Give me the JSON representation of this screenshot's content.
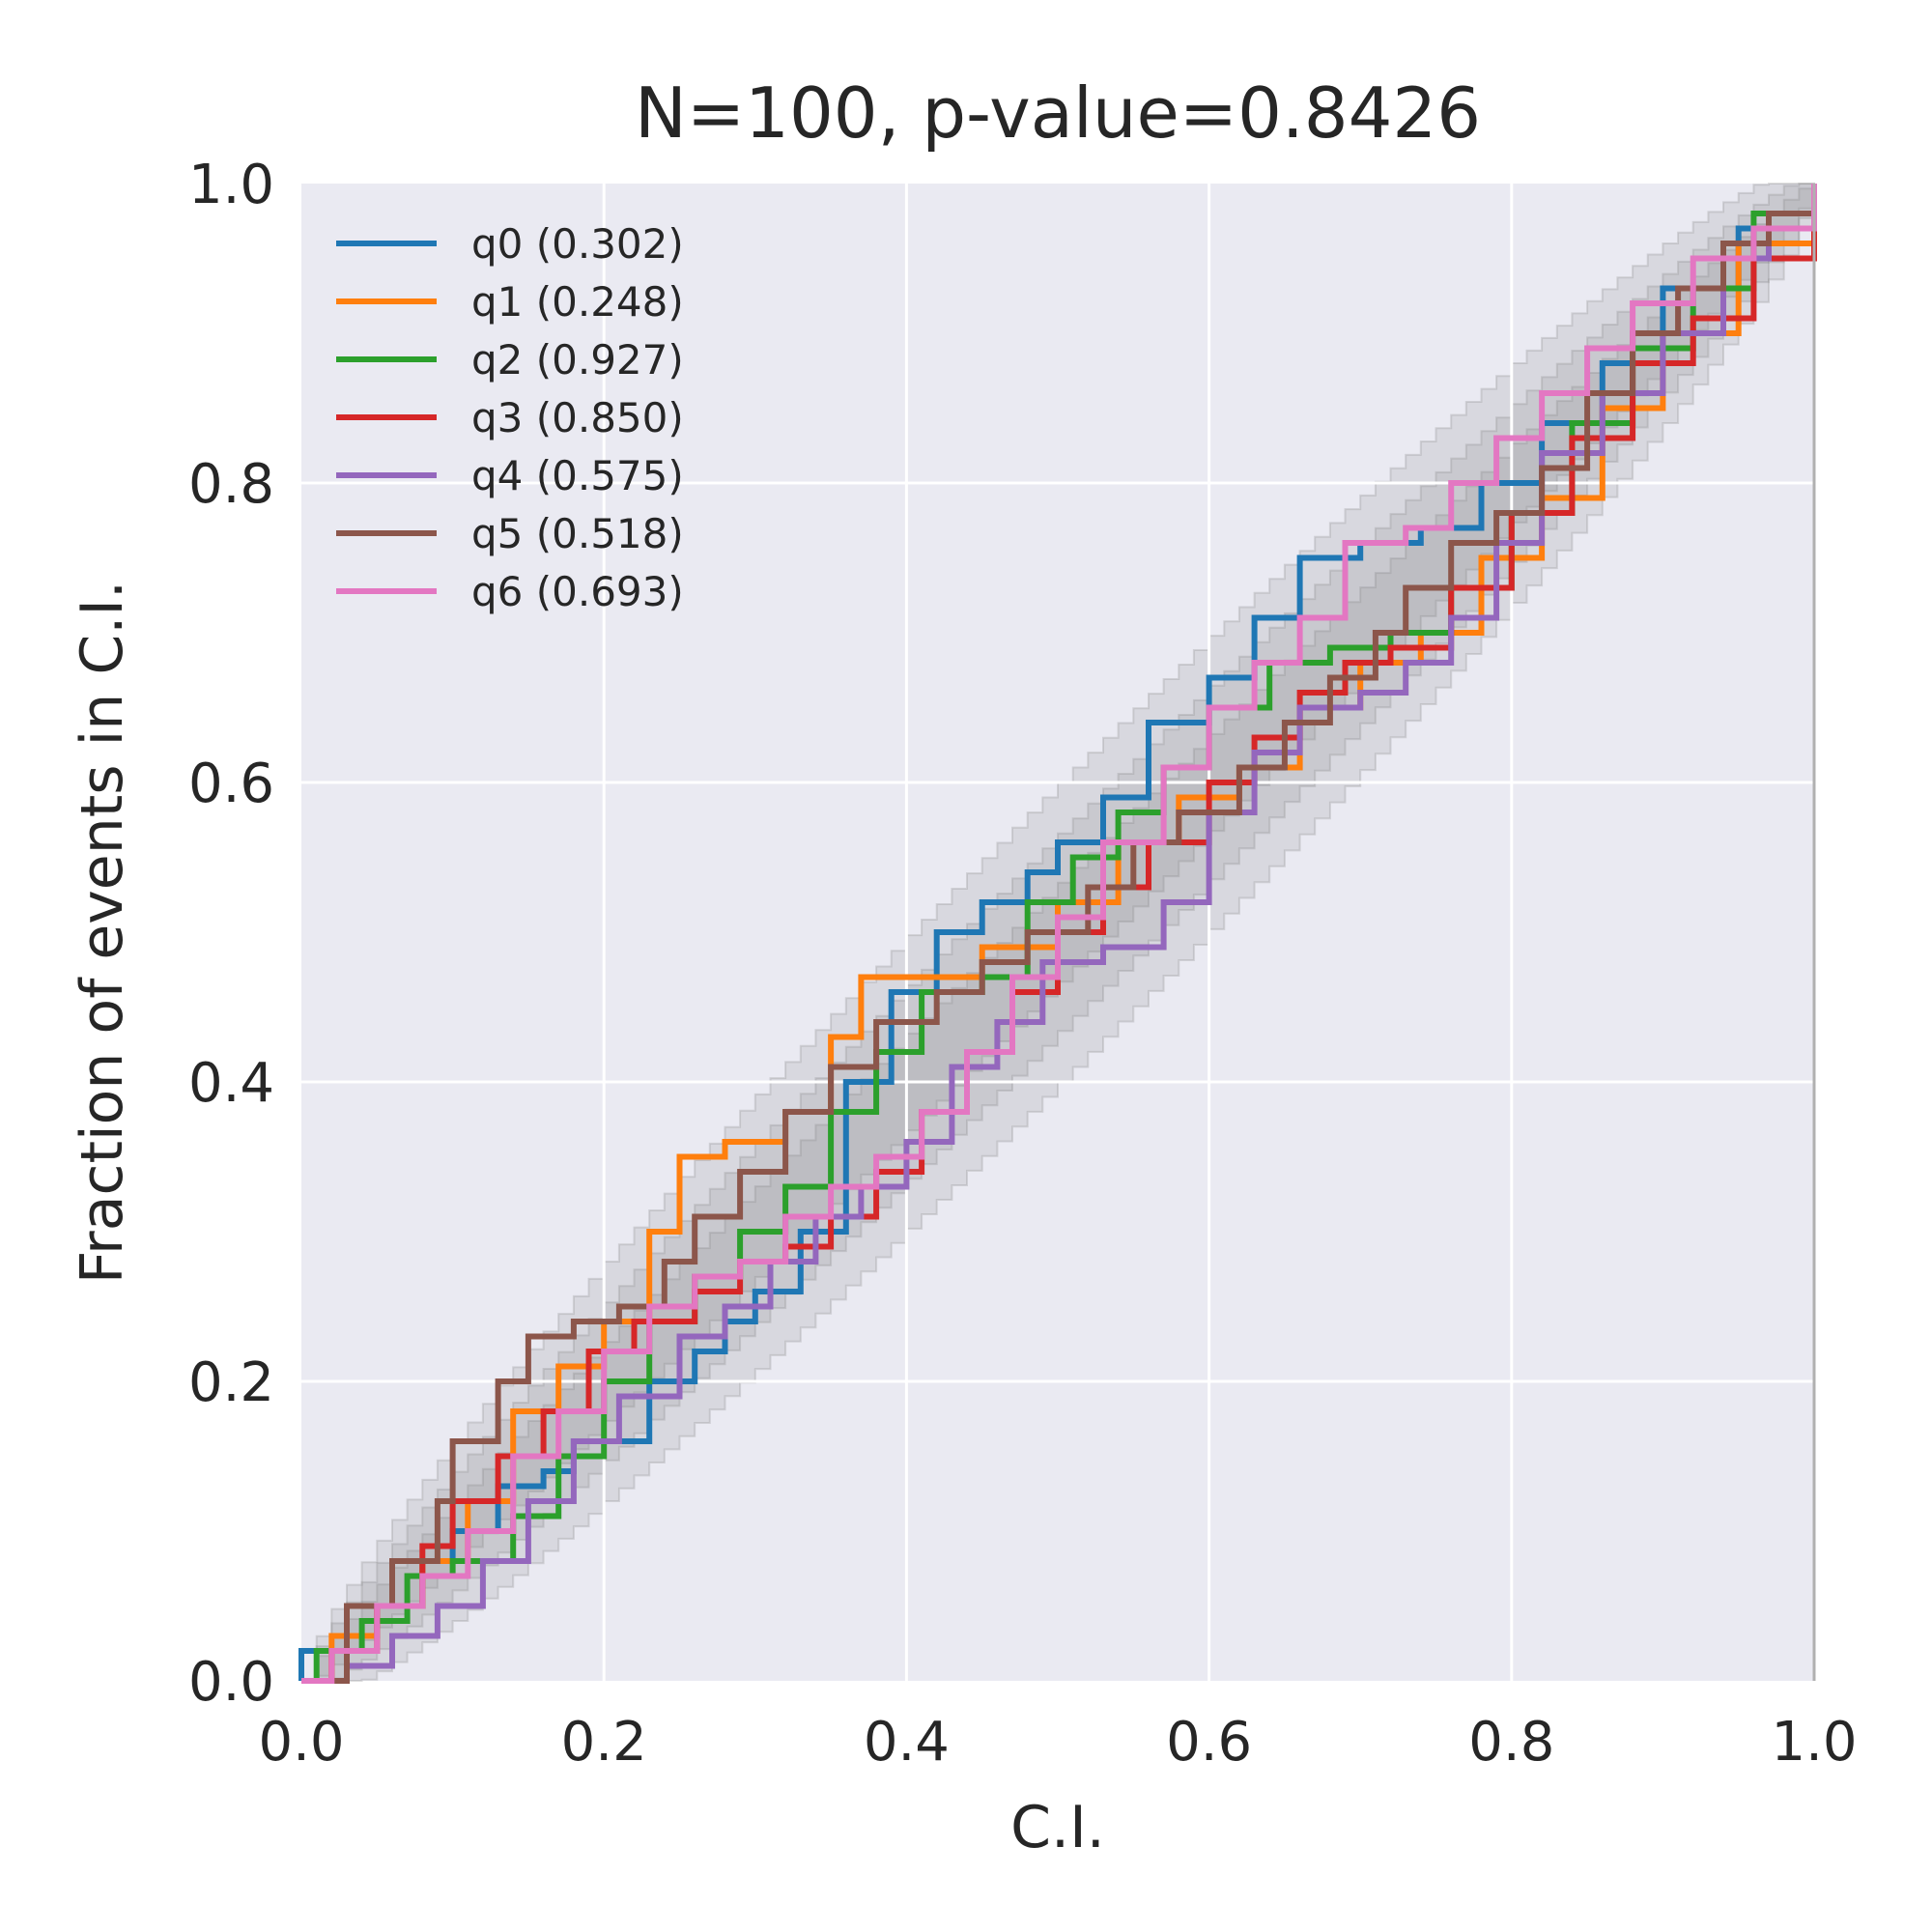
{
  "chart_data": {
    "type": "line",
    "title": "N=100, p-value=0.8426",
    "xlabel": "C.I.",
    "ylabel": "Fraction of events in C.I.",
    "xlim": [
      0.0,
      1.0
    ],
    "ylim": [
      0.0,
      1.0
    ],
    "x_ticks": [
      "0.0",
      "0.2",
      "0.4",
      "0.6",
      "0.8",
      "1.0"
    ],
    "y_ticks": [
      "0.0",
      "0.2",
      "0.4",
      "0.6",
      "0.8",
      "1.0"
    ],
    "grid": true,
    "legend_position": "upper-left",
    "confidence_bands": {
      "fill_color": "#808080",
      "half_widths": [
        0.1,
        0.066,
        0.033
      ]
    },
    "series": [
      {
        "name": "q0 (0.302)",
        "color": "#1f77b4",
        "points": [
          [
            0.0,
            0.0
          ],
          [
            0.0,
            0.02
          ],
          [
            0.03,
            0.03
          ],
          [
            0.05,
            0.05
          ],
          [
            0.08,
            0.08
          ],
          [
            0.1,
            0.1
          ],
          [
            0.13,
            0.13
          ],
          [
            0.16,
            0.14
          ],
          [
            0.18,
            0.16
          ],
          [
            0.22,
            0.16
          ],
          [
            0.23,
            0.2
          ],
          [
            0.26,
            0.22
          ],
          [
            0.28,
            0.24
          ],
          [
            0.3,
            0.26
          ],
          [
            0.33,
            0.3
          ],
          [
            0.36,
            0.4
          ],
          [
            0.39,
            0.46
          ],
          [
            0.42,
            0.5
          ],
          [
            0.45,
            0.52
          ],
          [
            0.48,
            0.54
          ],
          [
            0.5,
            0.56
          ],
          [
            0.53,
            0.59
          ],
          [
            0.56,
            0.64
          ],
          [
            0.6,
            0.67
          ],
          [
            0.63,
            0.71
          ],
          [
            0.66,
            0.75
          ],
          [
            0.7,
            0.76
          ],
          [
            0.74,
            0.77
          ],
          [
            0.78,
            0.8
          ],
          [
            0.82,
            0.84
          ],
          [
            0.86,
            0.88
          ],
          [
            0.9,
            0.93
          ],
          [
            0.95,
            0.97
          ],
          [
            1.0,
            1.0
          ]
        ]
      },
      {
        "name": "q1 (0.248)",
        "color": "#ff7f0e",
        "points": [
          [
            0.0,
            0.0
          ],
          [
            0.02,
            0.03
          ],
          [
            0.05,
            0.05
          ],
          [
            0.08,
            0.08
          ],
          [
            0.11,
            0.12
          ],
          [
            0.14,
            0.18
          ],
          [
            0.17,
            0.21
          ],
          [
            0.2,
            0.24
          ],
          [
            0.23,
            0.3
          ],
          [
            0.25,
            0.35
          ],
          [
            0.28,
            0.36
          ],
          [
            0.32,
            0.38
          ],
          [
            0.35,
            0.43
          ],
          [
            0.37,
            0.47
          ],
          [
            0.41,
            0.47
          ],
          [
            0.45,
            0.49
          ],
          [
            0.5,
            0.52
          ],
          [
            0.54,
            0.56
          ],
          [
            0.58,
            0.59
          ],
          [
            0.62,
            0.61
          ],
          [
            0.66,
            0.65
          ],
          [
            0.7,
            0.68
          ],
          [
            0.74,
            0.7
          ],
          [
            0.78,
            0.75
          ],
          [
            0.82,
            0.79
          ],
          [
            0.86,
            0.85
          ],
          [
            0.9,
            0.9
          ],
          [
            0.95,
            0.96
          ],
          [
            1.0,
            1.0
          ]
        ]
      },
      {
        "name": "q2 (0.927)",
        "color": "#2ca02c",
        "points": [
          [
            0.0,
            0.0
          ],
          [
            0.01,
            0.02
          ],
          [
            0.04,
            0.04
          ],
          [
            0.07,
            0.07
          ],
          [
            0.1,
            0.08
          ],
          [
            0.14,
            0.11
          ],
          [
            0.17,
            0.15
          ],
          [
            0.2,
            0.2
          ],
          [
            0.23,
            0.24
          ],
          [
            0.26,
            0.27
          ],
          [
            0.29,
            0.3
          ],
          [
            0.32,
            0.33
          ],
          [
            0.35,
            0.38
          ],
          [
            0.38,
            0.42
          ],
          [
            0.41,
            0.46
          ],
          [
            0.45,
            0.47
          ],
          [
            0.48,
            0.52
          ],
          [
            0.51,
            0.55
          ],
          [
            0.54,
            0.58
          ],
          [
            0.57,
            0.61
          ],
          [
            0.6,
            0.65
          ],
          [
            0.64,
            0.68
          ],
          [
            0.68,
            0.69
          ],
          [
            0.72,
            0.7
          ],
          [
            0.76,
            0.73
          ],
          [
            0.8,
            0.78
          ],
          [
            0.84,
            0.84
          ],
          [
            0.88,
            0.89
          ],
          [
            0.92,
            0.93
          ],
          [
            0.96,
            0.98
          ],
          [
            1.0,
            1.0
          ]
        ]
      },
      {
        "name": "q3 (0.850)",
        "color": "#d62728",
        "points": [
          [
            0.0,
            0.0
          ],
          [
            0.02,
            0.02
          ],
          [
            0.05,
            0.05
          ],
          [
            0.08,
            0.09
          ],
          [
            0.1,
            0.12
          ],
          [
            0.13,
            0.15
          ],
          [
            0.16,
            0.18
          ],
          [
            0.19,
            0.22
          ],
          [
            0.22,
            0.24
          ],
          [
            0.26,
            0.26
          ],
          [
            0.29,
            0.28
          ],
          [
            0.32,
            0.29
          ],
          [
            0.35,
            0.31
          ],
          [
            0.38,
            0.34
          ],
          [
            0.41,
            0.38
          ],
          [
            0.44,
            0.42
          ],
          [
            0.47,
            0.46
          ],
          [
            0.5,
            0.5
          ],
          [
            0.53,
            0.53
          ],
          [
            0.56,
            0.56
          ],
          [
            0.6,
            0.6
          ],
          [
            0.63,
            0.63
          ],
          [
            0.66,
            0.66
          ],
          [
            0.69,
            0.68
          ],
          [
            0.72,
            0.69
          ],
          [
            0.76,
            0.73
          ],
          [
            0.8,
            0.78
          ],
          [
            0.84,
            0.83
          ],
          [
            0.88,
            0.88
          ],
          [
            0.92,
            0.91
          ],
          [
            0.96,
            0.95
          ],
          [
            1.0,
            1.0
          ]
        ]
      },
      {
        "name": "q4 (0.575)",
        "color": "#9467bd",
        "points": [
          [
            0.0,
            0.0
          ],
          [
            0.03,
            0.01
          ],
          [
            0.06,
            0.03
          ],
          [
            0.09,
            0.05
          ],
          [
            0.12,
            0.08
          ],
          [
            0.15,
            0.12
          ],
          [
            0.18,
            0.16
          ],
          [
            0.21,
            0.19
          ],
          [
            0.25,
            0.23
          ],
          [
            0.28,
            0.25
          ],
          [
            0.31,
            0.28
          ],
          [
            0.34,
            0.31
          ],
          [
            0.37,
            0.33
          ],
          [
            0.4,
            0.36
          ],
          [
            0.43,
            0.41
          ],
          [
            0.46,
            0.44
          ],
          [
            0.49,
            0.48
          ],
          [
            0.53,
            0.49
          ],
          [
            0.57,
            0.52
          ],
          [
            0.6,
            0.58
          ],
          [
            0.63,
            0.62
          ],
          [
            0.66,
            0.65
          ],
          [
            0.7,
            0.66
          ],
          [
            0.73,
            0.68
          ],
          [
            0.76,
            0.71
          ],
          [
            0.79,
            0.76
          ],
          [
            0.82,
            0.82
          ],
          [
            0.86,
            0.86
          ],
          [
            0.9,
            0.9
          ],
          [
            0.94,
            0.95
          ],
          [
            0.97,
            0.97
          ],
          [
            1.0,
            1.0
          ]
        ]
      },
      {
        "name": "q5 (0.518)",
        "color": "#8c564b",
        "points": [
          [
            0.0,
            0.0
          ],
          [
            0.03,
            0.05
          ],
          [
            0.06,
            0.08
          ],
          [
            0.09,
            0.12
          ],
          [
            0.1,
            0.16
          ],
          [
            0.13,
            0.2
          ],
          [
            0.15,
            0.23
          ],
          [
            0.18,
            0.24
          ],
          [
            0.21,
            0.25
          ],
          [
            0.24,
            0.28
          ],
          [
            0.26,
            0.31
          ],
          [
            0.29,
            0.34
          ],
          [
            0.32,
            0.38
          ],
          [
            0.35,
            0.41
          ],
          [
            0.38,
            0.44
          ],
          [
            0.42,
            0.46
          ],
          [
            0.45,
            0.48
          ],
          [
            0.48,
            0.5
          ],
          [
            0.52,
            0.53
          ],
          [
            0.55,
            0.56
          ],
          [
            0.58,
            0.58
          ],
          [
            0.62,
            0.61
          ],
          [
            0.65,
            0.64
          ],
          [
            0.68,
            0.67
          ],
          [
            0.71,
            0.7
          ],
          [
            0.73,
            0.73
          ],
          [
            0.76,
            0.76
          ],
          [
            0.79,
            0.78
          ],
          [
            0.82,
            0.81
          ],
          [
            0.85,
            0.86
          ],
          [
            0.88,
            0.9
          ],
          [
            0.91,
            0.93
          ],
          [
            0.94,
            0.96
          ],
          [
            0.97,
            0.98
          ],
          [
            1.0,
            1.0
          ]
        ]
      },
      {
        "name": "q6 (0.693)",
        "color": "#e377c2",
        "points": [
          [
            0.0,
            0.0
          ],
          [
            0.02,
            0.02
          ],
          [
            0.05,
            0.05
          ],
          [
            0.08,
            0.07
          ],
          [
            0.11,
            0.1
          ],
          [
            0.14,
            0.15
          ],
          [
            0.17,
            0.18
          ],
          [
            0.2,
            0.22
          ],
          [
            0.23,
            0.25
          ],
          [
            0.26,
            0.27
          ],
          [
            0.29,
            0.28
          ],
          [
            0.32,
            0.31
          ],
          [
            0.35,
            0.33
          ],
          [
            0.38,
            0.35
          ],
          [
            0.41,
            0.38
          ],
          [
            0.44,
            0.42
          ],
          [
            0.47,
            0.47
          ],
          [
            0.5,
            0.51
          ],
          [
            0.53,
            0.56
          ],
          [
            0.57,
            0.61
          ],
          [
            0.6,
            0.65
          ],
          [
            0.63,
            0.68
          ],
          [
            0.66,
            0.71
          ],
          [
            0.69,
            0.76
          ],
          [
            0.73,
            0.77
          ],
          [
            0.76,
            0.8
          ],
          [
            0.79,
            0.83
          ],
          [
            0.82,
            0.86
          ],
          [
            0.85,
            0.89
          ],
          [
            0.88,
            0.92
          ],
          [
            0.92,
            0.95
          ],
          [
            0.96,
            0.97
          ],
          [
            1.0,
            1.0
          ]
        ]
      }
    ]
  }
}
